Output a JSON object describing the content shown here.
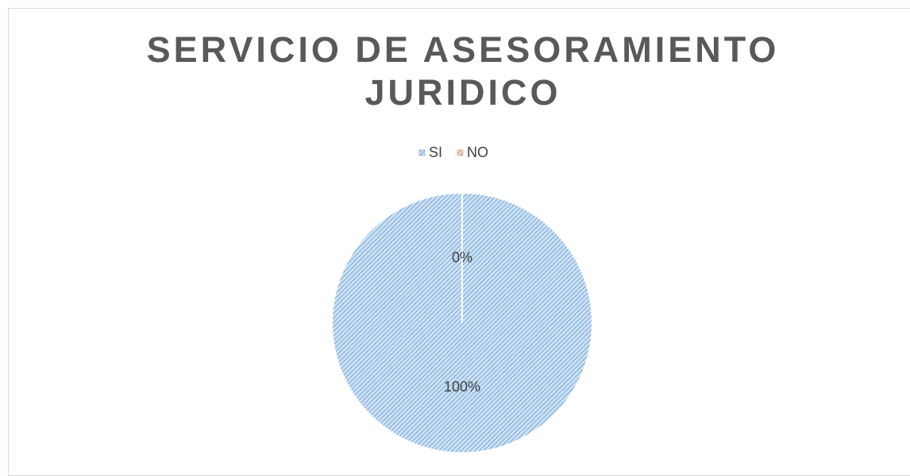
{
  "chart_data": {
    "type": "pie",
    "title": "SERVICIO DE ASESORAMIENTO JURIDICO",
    "categories": [
      "SI",
      "NO"
    ],
    "values": [
      100,
      0
    ],
    "value_labels": [
      "100%",
      "0%"
    ],
    "colors": [
      "#5b9bd5",
      "#ed7d31"
    ],
    "legend": "top"
  }
}
